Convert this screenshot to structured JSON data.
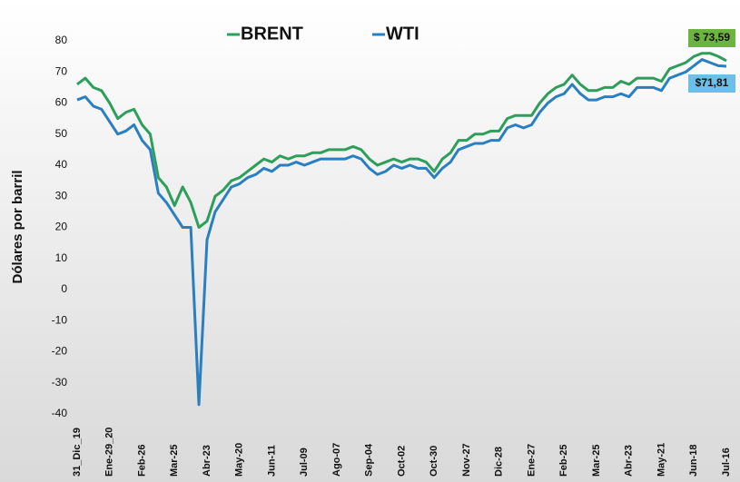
{
  "chart_data": {
    "type": "line",
    "y_label": "Dólares por barril",
    "categories": [
      "31_Dic_19",
      null,
      null,
      null,
      "Ene-29_20",
      null,
      null,
      null,
      "Feb-26",
      null,
      null,
      null,
      "Mar-25",
      null,
      null,
      null,
      "Abr-23",
      null,
      null,
      null,
      "May-20",
      null,
      null,
      null,
      "Jun-11",
      null,
      null,
      null,
      "Jul-09",
      null,
      null,
      null,
      "Ago-07",
      null,
      null,
      null,
      "Sep-04",
      null,
      null,
      null,
      "Oct-02",
      null,
      null,
      null,
      "Oct-30",
      null,
      null,
      null,
      "Nov-27",
      null,
      null,
      null,
      "Dic-28",
      null,
      null,
      null,
      "Ene-27",
      null,
      null,
      null,
      "Feb-25",
      null,
      null,
      null,
      "Mar-25",
      null,
      null,
      null,
      "Abr-23",
      null,
      null,
      null,
      "May-21",
      null,
      null,
      null,
      "Jun-18",
      null,
      null,
      null,
      "Jul-16"
    ],
    "series": [
      {
        "name": "BRENT",
        "color": "#2e9e5b",
        "end_label": "$ 73,59",
        "label_color": "#6cb33f",
        "values": [
          66,
          68,
          65,
          64,
          60,
          55,
          57,
          58,
          53,
          50,
          36,
          33,
          27,
          33,
          28,
          20,
          22,
          30,
          32,
          35,
          36,
          38,
          40,
          42,
          41,
          43,
          42,
          43,
          43,
          44,
          44,
          45,
          45,
          45,
          46,
          45,
          42,
          40,
          41,
          42,
          41,
          42,
          42,
          41,
          38,
          42,
          44,
          48,
          48,
          50,
          50,
          51,
          51,
          55,
          56,
          56,
          56,
          60,
          63,
          65,
          66,
          69,
          66,
          64,
          64,
          65,
          65,
          67,
          66,
          68,
          68,
          68,
          67,
          71,
          72,
          73,
          75,
          76,
          76,
          75,
          73.59
        ]
      },
      {
        "name": "WTI",
        "color": "#2a7fc0",
        "end_label": "$71,81",
        "label_color": "#6bbfe8",
        "values": [
          61,
          62,
          59,
          58,
          54,
          50,
          51,
          53,
          48,
          45,
          31,
          28,
          24,
          20,
          20,
          -37,
          16,
          25,
          29,
          33,
          34,
          36,
          37,
          39,
          38,
          40,
          40,
          41,
          40,
          41,
          42,
          42,
          42,
          42,
          43,
          42,
          39,
          37,
          38,
          40,
          39,
          40,
          39,
          39,
          36,
          39,
          41,
          45,
          46,
          47,
          47,
          48,
          48,
          52,
          53,
          52,
          53,
          57,
          60,
          62,
          63,
          66,
          63,
          61,
          61,
          62,
          62,
          63,
          62,
          65,
          65,
          65,
          64,
          68,
          69,
          70,
          72,
          74,
          73,
          72,
          71.81
        ]
      }
    ],
    "ylim": [
      -40,
      80
    ],
    "yticks": [
      -40,
      -30,
      -20,
      -10,
      0,
      10,
      20,
      30,
      40,
      50,
      60,
      70,
      80
    ]
  }
}
